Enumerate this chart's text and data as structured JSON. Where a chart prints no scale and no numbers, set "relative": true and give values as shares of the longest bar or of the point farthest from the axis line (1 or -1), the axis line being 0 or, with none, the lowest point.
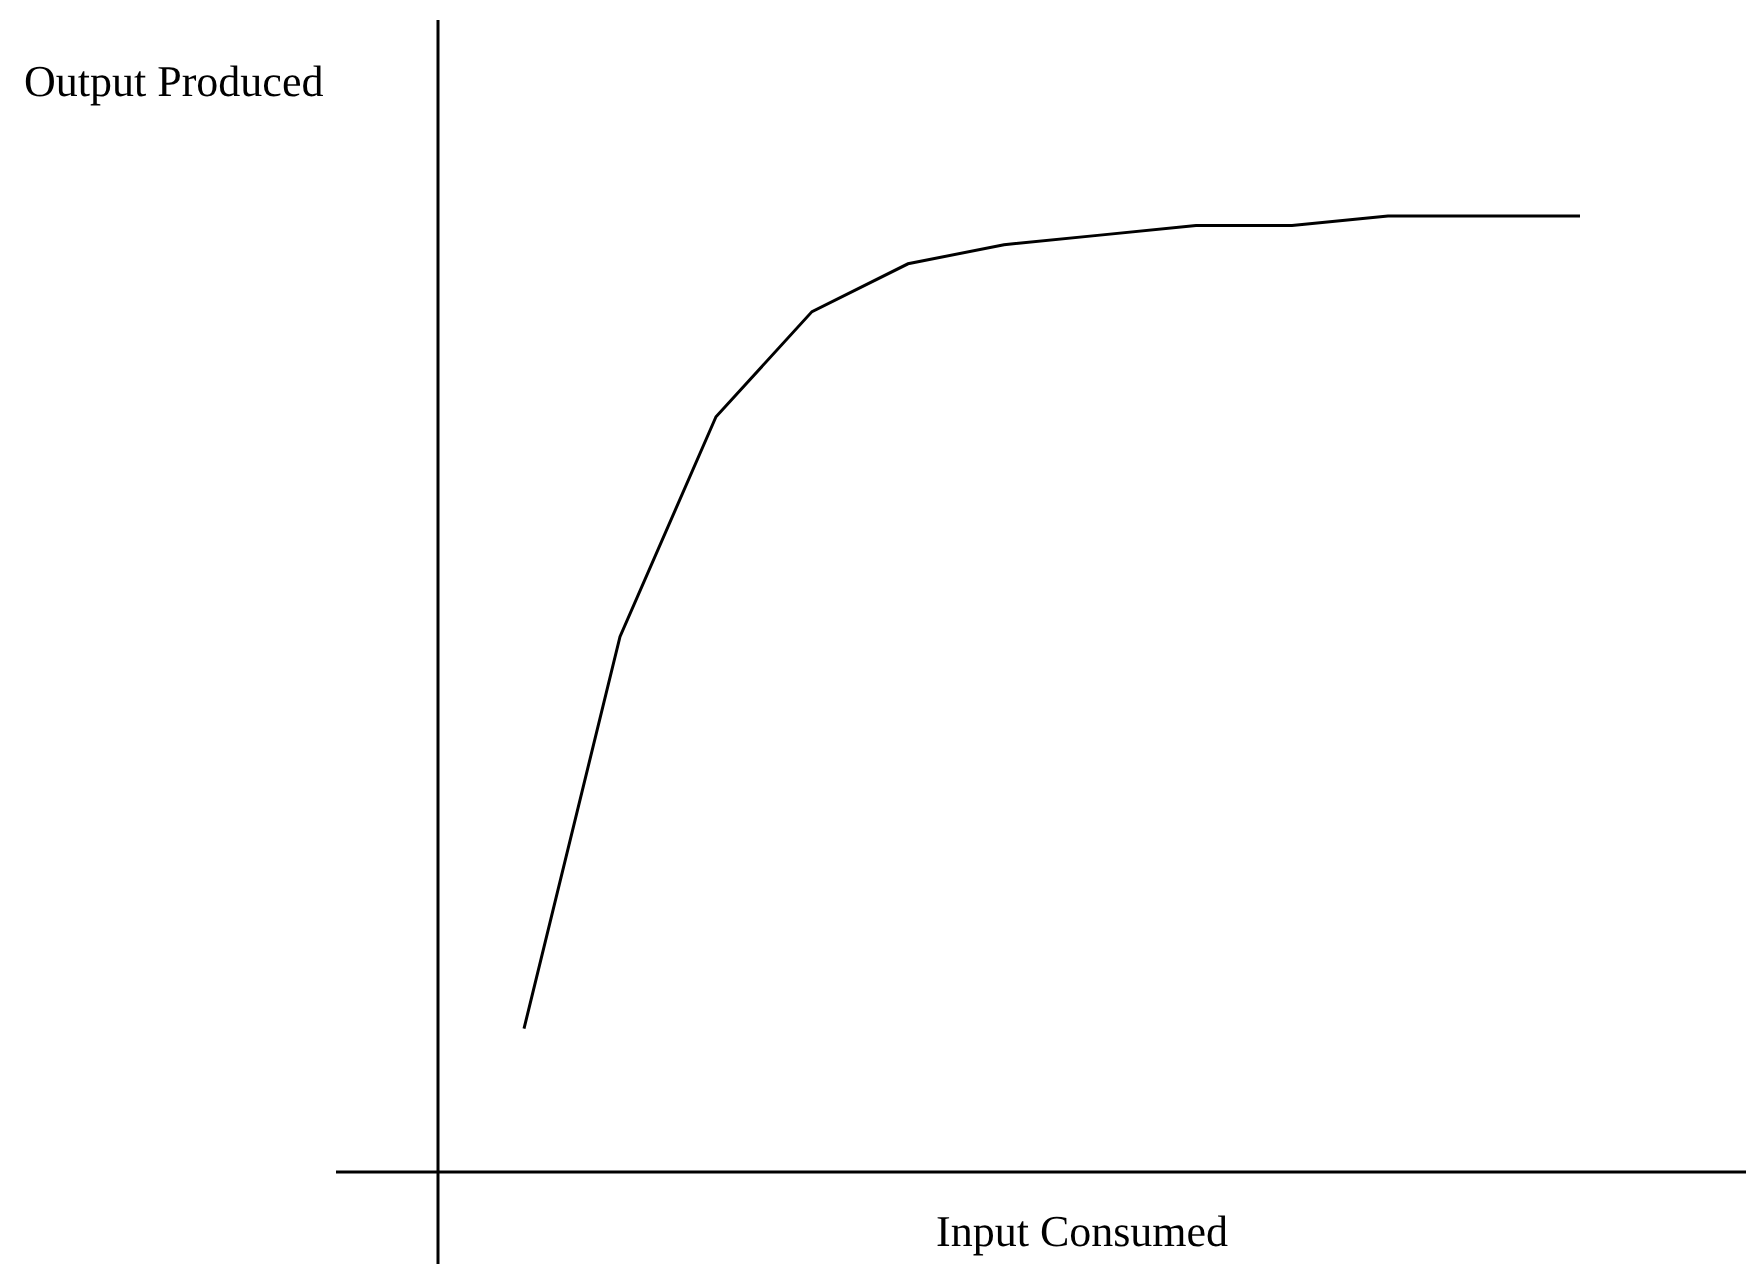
{
  "chart_data": {
    "type": "line",
    "relative": true,
    "xlabel": "Input Consumed",
    "ylabel": "Output Produced",
    "categories": [
      null,
      null,
      null,
      null,
      null,
      null,
      null,
      null,
      null,
      null,
      null,
      null
    ],
    "series": [
      {
        "color": "#000000",
        "values": [
          0.15,
          0.56,
          0.79,
          0.9,
          0.95,
          0.97,
          0.98,
          0.99,
          0.99,
          1,
          1,
          1
        ]
      }
    ],
    "marker": "none",
    "line_style": "solid"
  }
}
